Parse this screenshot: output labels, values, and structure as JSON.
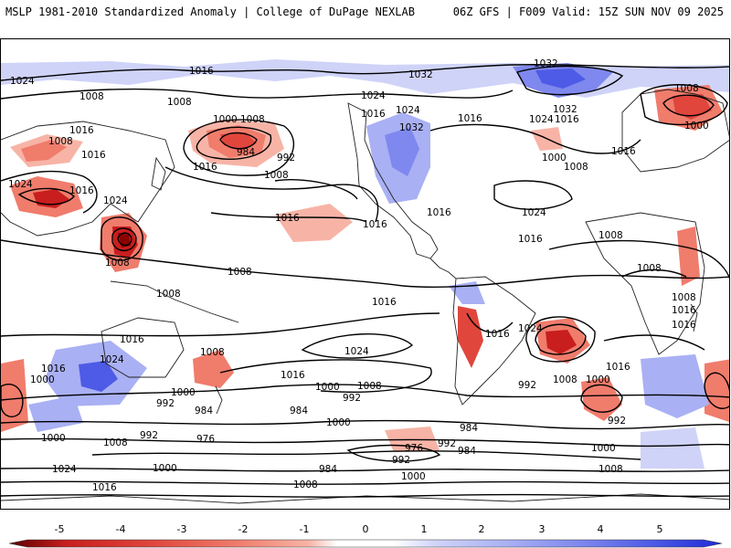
{
  "header": {
    "left": "MSLP 1981-2010 Standardized Anomaly | College of DuPage NEXLAB",
    "right": "06Z GFS | F009 Valid: 15Z SUN NOV 09 2025"
  },
  "colors": {
    "neg5": "#8b0000",
    "neg4": "#c81e1e",
    "neg3": "#e0463c",
    "neg2": "#f07c6c",
    "neg1": "#f7b4a6",
    "zero": "#ffffff",
    "pos1": "#cfd3f8",
    "pos2": "#a9b0f4",
    "pos3": "#7f88ee",
    "pos4": "#4e5be6",
    "pos5": "#1e2ad6",
    "contour": "#000000",
    "land": "#222222"
  },
  "colorbar": {
    "ticks": [
      "-5",
      "-4",
      "-3",
      "-2",
      "-1",
      "0",
      "1",
      "2",
      "3",
      "4",
      "5"
    ],
    "values": [
      -5,
      -4,
      -3,
      -2,
      -1,
      0,
      1,
      2,
      3,
      4,
      5
    ]
  },
  "contour_labels": [
    {
      "text": "1024",
      "id": "c1024-nw"
    },
    {
      "text": "1016",
      "id": "c1016-n"
    },
    {
      "text": "1008",
      "id": "c1008-a"
    },
    {
      "text": "1008",
      "id": "c1008-b"
    },
    {
      "text": "1032",
      "id": "c1032-n"
    },
    {
      "text": "1032",
      "id": "c1032-ne"
    },
    {
      "text": "1024",
      "id": "c1024-n"
    },
    {
      "text": "1016",
      "id": "c1016-n2"
    },
    {
      "text": "1024",
      "id": "c1024-n3"
    },
    {
      "text": "1032",
      "id": "c1032-na"
    },
    {
      "text": "1016",
      "id": "c1016-na"
    },
    {
      "text": "1032",
      "id": "c1032-atl"
    },
    {
      "text": "1024",
      "id": "c1024-atl"
    },
    {
      "text": "1016",
      "id": "c1016-atl"
    },
    {
      "text": "1008",
      "id": "c1008-ne"
    },
    {
      "text": "1000",
      "id": "c1000-ne"
    },
    {
      "text": "1000",
      "id": "c1000-atl"
    },
    {
      "text": "1008",
      "id": "c1008-atl"
    },
    {
      "text": "1016",
      "id": "c1016-eu"
    },
    {
      "text": "1000",
      "id": "c1000-pac"
    },
    {
      "text": "1008",
      "id": "c1008-pac"
    },
    {
      "text": "984",
      "id": "c984-pac"
    },
    {
      "text": "992",
      "id": "c992-pac"
    },
    {
      "text": "1008",
      "id": "c1008-pac2"
    },
    {
      "text": "1016",
      "id": "c1016-pac"
    },
    {
      "text": "1008",
      "id": "c1008-w"
    },
    {
      "text": "1016",
      "id": "c1016-w"
    },
    {
      "text": "1016",
      "id": "c1016-w2"
    },
    {
      "text": "1024",
      "id": "c1024-w"
    },
    {
      "text": "1016",
      "id": "c1016-w3"
    },
    {
      "text": "1024",
      "id": "c1024-w2"
    },
    {
      "text": "1016",
      "id": "c1016-cpac"
    },
    {
      "text": "1016",
      "id": "c1016-na2"
    },
    {
      "text": "1016",
      "id": "c1016-atl2"
    },
    {
      "text": "1024",
      "id": "c1024-atl2"
    },
    {
      "text": "1016",
      "id": "c1016-atl3"
    },
    {
      "text": "1008",
      "id": "c1008-af"
    },
    {
      "text": "1008",
      "id": "c1008-af2"
    },
    {
      "text": "1008",
      "id": "c1008-af3"
    },
    {
      "text": "1016",
      "id": "c1016-af"
    },
    {
      "text": "1008",
      "id": "c1008-wp"
    },
    {
      "text": "1008",
      "id": "c1008-wp2"
    },
    {
      "text": "1008",
      "id": "c1008-cp"
    },
    {
      "text": "1016",
      "id": "c1016-sp"
    },
    {
      "text": "1016",
      "id": "c1016-sam"
    },
    {
      "text": "1024",
      "id": "c1024-sp"
    },
    {
      "text": "1016",
      "id": "c1016-au"
    },
    {
      "text": "1024",
      "id": "c1024-au"
    },
    {
      "text": "1008",
      "id": "c1008-au"
    },
    {
      "text": "1016",
      "id": "c1016-sw"
    },
    {
      "text": "1000",
      "id": "c1000-sw"
    },
    {
      "text": "1000",
      "id": "c1000-sw2"
    },
    {
      "text": "992",
      "id": "c992-sw"
    },
    {
      "text": "984",
      "id": "c984-sw"
    },
    {
      "text": "976",
      "id": "c976-sw"
    },
    {
      "text": "1016",
      "id": "c1016-sp2"
    },
    {
      "text": "1000",
      "id": "c1000-sp"
    },
    {
      "text": "992",
      "id": "c992-sp"
    },
    {
      "text": "1008",
      "id": "c1008-sp"
    },
    {
      "text": "984",
      "id": "c984-sp"
    },
    {
      "text": "1000",
      "id": "c1000-so"
    },
    {
      "text": "1008",
      "id": "c1008-so"
    },
    {
      "text": "992",
      "id": "c992-so"
    },
    {
      "text": "1024",
      "id": "c1024-so"
    },
    {
      "text": "1016",
      "id": "c1016-so"
    },
    {
      "text": "1000",
      "id": "c1000-so2"
    },
    {
      "text": "984",
      "id": "c984-so2"
    },
    {
      "text": "1008",
      "id": "c1008-so2"
    },
    {
      "text": "992",
      "id": "c992-so2"
    },
    {
      "text": "976",
      "id": "c976-so"
    },
    {
      "text": "984",
      "id": "c984-so3"
    },
    {
      "text": "992",
      "id": "c992-so3"
    },
    {
      "text": "1000",
      "id": "c1000-so3"
    },
    {
      "text": "1016",
      "id": "c1016-sa"
    },
    {
      "text": "1024",
      "id": "c1024-sa"
    },
    {
      "text": "992",
      "id": "c992-sa"
    },
    {
      "text": "1008",
      "id": "c1008-sa"
    },
    {
      "text": "1000",
      "id": "c1000-sa"
    },
    {
      "text": "992",
      "id": "c992-sa2"
    },
    {
      "text": "1016",
      "id": "c1016-sa2"
    },
    {
      "text": "1000",
      "id": "c1000-so4"
    },
    {
      "text": "1008",
      "id": "c1008-so4"
    },
    {
      "text": "984",
      "id": "c984-so4"
    },
    {
      "text": "1000",
      "id": "c1000-so5"
    }
  ]
}
